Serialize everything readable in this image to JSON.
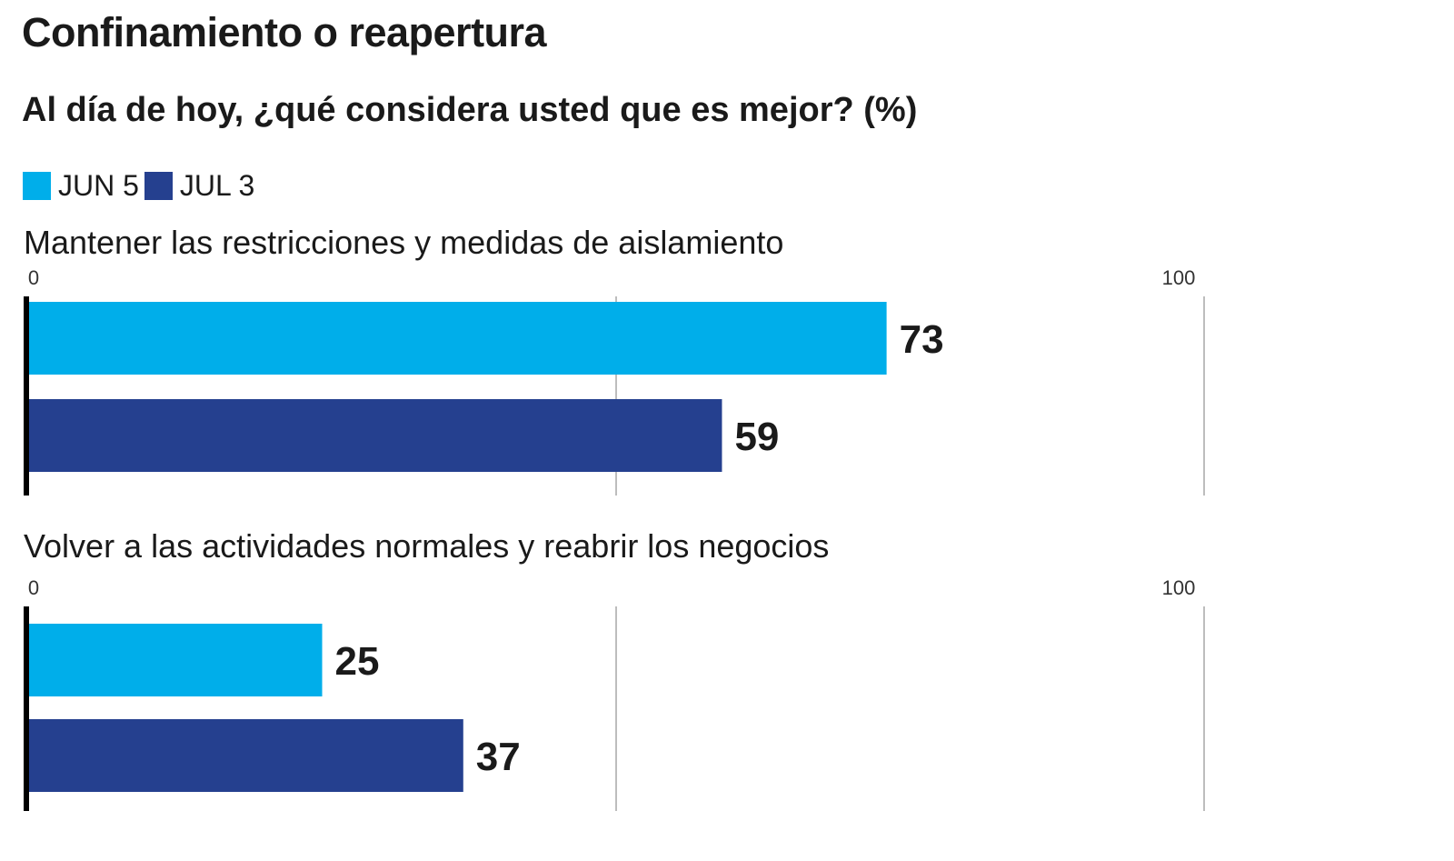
{
  "title": "Confinamiento o reapertura",
  "subtitle": "Al día de hoy, ¿qué considera usted que es mejor? (%)",
  "legend": [
    {
      "label": "JUN 5",
      "color": "#00AEEA"
    },
    {
      "label": "JUL 3",
      "color": "#25408F"
    }
  ],
  "chart_data": {
    "type": "bar",
    "orientation": "horizontal",
    "title": "Confinamiento o reapertura",
    "subtitle": "Al día de hoy, ¿qué considera usted que es mejor? (%)",
    "categories": [
      "Mantener las restricciones y medidas de aislamiento",
      "Volver a las actividades normales y reabrir los negocios"
    ],
    "series": [
      {
        "name": "JUN 5",
        "color": "#00AEEA",
        "values": [
          73,
          25
        ]
      },
      {
        "name": "JUL 3",
        "color": "#25408F",
        "values": [
          59,
          37
        ]
      }
    ],
    "xlim": [
      0,
      100
    ],
    "ticks": [
      "0",
      "100"
    ],
    "gridlines": [
      50,
      100
    ],
    "legend_position": "top-left"
  }
}
